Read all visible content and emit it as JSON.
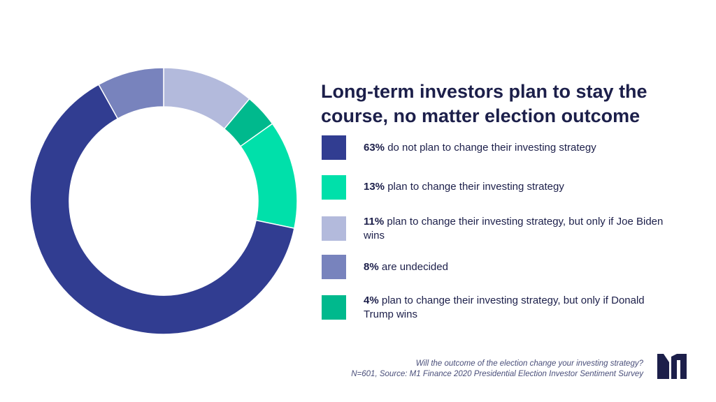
{
  "chart_data": {
    "type": "pie",
    "variant": "donut",
    "title": "Long-term investors plan to stay the course, no matter election outcome",
    "slices": [
      {
        "value": 63,
        "pct_label": "63%",
        "text": "do not plan to change their investing strategy",
        "color": "#313d91"
      },
      {
        "value": 13,
        "pct_label": "13%",
        "text": "plan to change their investing strategy",
        "color": "#00e0aa"
      },
      {
        "value": 11,
        "pct_label": "11%",
        "text": "plan to change their investing strategy, but only if Joe Biden wins",
        "color": "#b3badc"
      },
      {
        "value": 8,
        "pct_label": "8%",
        "text": "are undecided",
        "color": "#7883bd"
      },
      {
        "value": 4,
        "pct_label": "4%",
        "text": "plan to change their investing strategy, but only if Donald Trump wins",
        "color": "#00b98d"
      }
    ],
    "ring_order_clockwise_from_top": [
      2,
      4,
      1,
      0,
      3
    ]
  },
  "footer": {
    "question": "Will the outcome of the election change your investing strategy?",
    "source": "N=601, Source: M1 Finance 2020 Presidential Election Investor Sentiment Survey"
  },
  "brand": {
    "logo": "M1 Finance logo",
    "logo_color": "#1c1f4a"
  }
}
